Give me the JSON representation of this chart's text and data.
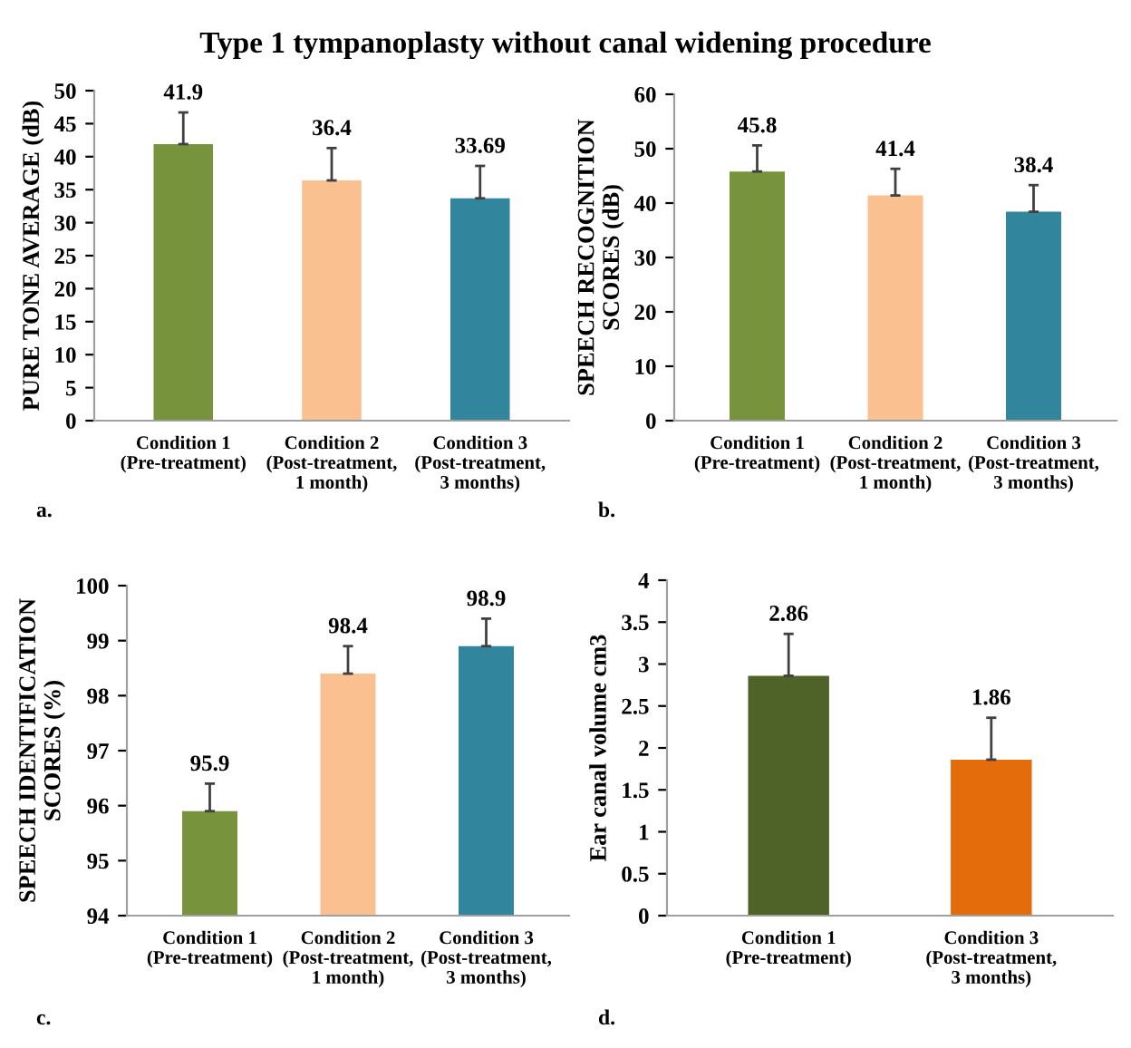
{
  "chart_data": [
    {
      "type": "bar",
      "title": "Type 1 tympanoplasty without canal widening procedure",
      "ylabel": "PURE TONE AVERAGE (dB)",
      "categories": [
        "Condition 1\n(Pre-treatment)",
        "Condition 2\n(Post-treatment,\n1 month)",
        "Condition 3\n(Post-treatment,\n3 months)"
      ],
      "values": [
        41.9,
        36.4,
        33.69
      ],
      "colors": [
        "#77933c",
        "#fac090",
        "#31859c"
      ],
      "errors": [
        [
          41.9,
          46.7
        ],
        [
          36.4,
          41.3
        ],
        [
          33.69,
          38.6
        ]
      ],
      "data_labels": true,
      "ylim": [
        0,
        50
      ],
      "yticks": [
        0,
        5,
        10,
        15,
        20,
        25,
        30,
        35,
        40,
        45,
        50
      ],
      "grid": false,
      "legend": false,
      "annotations": [
        "a."
      ]
    },
    {
      "type": "bar",
      "ylabel": "SPEECH RECOGNITION\nSCORES (dB)",
      "categories": [
        "Condition 1\n(Pre-treatment)",
        "Condition 2\n(Post-treatment,\n1 month)",
        "Condition 3\n(Post-treatment,\n3 months)"
      ],
      "values": [
        45.8,
        41.4,
        38.4
      ],
      "colors": [
        "#77933c",
        "#fac090",
        "#31859c"
      ],
      "errors": [
        [
          45.8,
          50.6
        ],
        [
          41.4,
          46.3
        ],
        [
          38.4,
          43.3
        ]
      ],
      "data_labels": true,
      "ylim": [
        0,
        60
      ],
      "yticks": [
        0,
        10,
        20,
        30,
        40,
        50,
        60
      ],
      "grid": false,
      "legend": false,
      "annotations": [
        "b."
      ]
    },
    {
      "type": "bar",
      "ylabel": "SPEECH IDENTIFICATION\nSCORES (%)",
      "categories": [
        "Condition 1\n(Pre-treatment)",
        "Condition 2\n(Post-treatment,\n1 month)",
        "Condition 3\n(Post-treatment,\n3 months)"
      ],
      "values": [
        95.9,
        98.4,
        98.9
      ],
      "colors": [
        "#77933c",
        "#fac090",
        "#31859c"
      ],
      "errors": [
        [
          95.9,
          96.4
        ],
        [
          98.4,
          98.9
        ],
        [
          98.9,
          99.4
        ]
      ],
      "data_labels": true,
      "ylim": [
        94,
        100
      ],
      "yticks": [
        94,
        95,
        96,
        97,
        98,
        99,
        100
      ],
      "grid": false,
      "legend": false,
      "annotations": [
        "c."
      ]
    },
    {
      "type": "bar",
      "ylabel": "Ear canal volume cm3",
      "categories": [
        "Condition 1\n(Pre-treatment)",
        "Condition 3\n(Post-treatment,\n3 months)"
      ],
      "values": [
        2.86,
        1.86
      ],
      "colors": [
        "#4f6228",
        "#e46c0a"
      ],
      "errors": [
        [
          2.86,
          3.36
        ],
        [
          1.86,
          2.36
        ]
      ],
      "data_labels": true,
      "ylim": [
        0,
        4
      ],
      "yticks": [
        0,
        0.5,
        1,
        1.5,
        2,
        2.5,
        3,
        3.5,
        4
      ],
      "grid": false,
      "legend": false,
      "annotations": [
        "d."
      ]
    }
  ]
}
